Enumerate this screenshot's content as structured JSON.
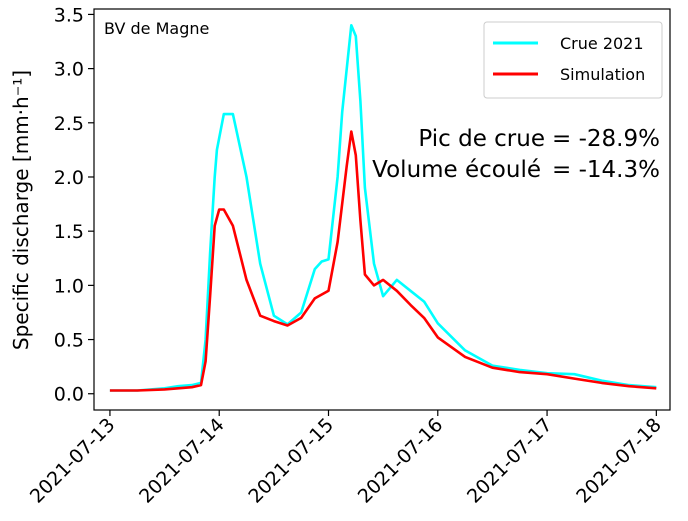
{
  "chart_data": {
    "type": "line",
    "title": "",
    "xlabel": "",
    "ylabel": "Specific discharge [mm·h⁻¹]",
    "ylim": [
      -0.15,
      3.55
    ],
    "xlim": [
      "2021-07-12T20:30",
      "2021-07-18T03:00"
    ],
    "x_ticks": [
      "2021-07-13",
      "2021-07-14",
      "2021-07-15",
      "2021-07-16",
      "2021-07-17",
      "2021-07-18"
    ],
    "y_ticks": [
      "0.0",
      "0.5",
      "1.0",
      "1.5",
      "2.0",
      "2.5",
      "3.0",
      "3.5"
    ],
    "grid": false,
    "legend_position": "top-right",
    "inset_label": "BV de Magne",
    "annotations": [
      {
        "label": "Pic de crue",
        "value": "= -28.9%"
      },
      {
        "label": "Volume écoulé",
        "value": "= -14.3%"
      }
    ],
    "series": [
      {
        "name": "Crue 2021",
        "color": "#00ffff",
        "x": [
          "2021-07-13T00:00",
          "2021-07-13T06:00",
          "2021-07-13T12:00",
          "2021-07-13T15:00",
          "2021-07-13T18:00",
          "2021-07-13T20:00",
          "2021-07-13T21:00",
          "2021-07-13T22:00",
          "2021-07-13T23:00",
          "2021-07-13T23:30",
          "2021-07-14T01:00",
          "2021-07-14T03:00",
          "2021-07-14T06:00",
          "2021-07-14T09:00",
          "2021-07-14T12:00",
          "2021-07-14T15:00",
          "2021-07-14T18:00",
          "2021-07-14T21:00",
          "2021-07-14T22:30",
          "2021-07-15T00:00",
          "2021-07-15T02:00",
          "2021-07-15T03:00",
          "2021-07-15T05:00",
          "2021-07-15T06:00",
          "2021-07-15T07:00",
          "2021-07-15T08:00",
          "2021-07-15T10:00",
          "2021-07-15T12:00",
          "2021-07-15T15:00",
          "2021-07-15T18:00",
          "2021-07-15T21:00",
          "2021-07-16T00:00",
          "2021-07-16T06:00",
          "2021-07-16T12:00",
          "2021-07-16T18:00",
          "2021-07-17T00:00",
          "2021-07-17T06:00",
          "2021-07-17T12:00",
          "2021-07-17T18:00",
          "2021-07-18T00:00"
        ],
        "y": [
          0.03,
          0.03,
          0.05,
          0.07,
          0.08,
          0.1,
          0.5,
          1.3,
          2.0,
          2.25,
          2.58,
          2.58,
          2.0,
          1.2,
          0.72,
          0.64,
          0.75,
          1.15,
          1.22,
          1.24,
          2.0,
          2.6,
          3.4,
          3.3,
          2.7,
          1.9,
          1.2,
          0.9,
          1.05,
          0.95,
          0.85,
          0.65,
          0.4,
          0.26,
          0.22,
          0.19,
          0.18,
          0.12,
          0.08,
          0.06
        ]
      },
      {
        "name": "Simulation",
        "color": "#ff0000",
        "x": [
          "2021-07-13T00:00",
          "2021-07-13T06:00",
          "2021-07-13T12:00",
          "2021-07-13T15:00",
          "2021-07-13T18:00",
          "2021-07-13T20:00",
          "2021-07-13T21:00",
          "2021-07-13T22:00",
          "2021-07-13T23:00",
          "2021-07-14T00:00",
          "2021-07-14T01:00",
          "2021-07-14T03:00",
          "2021-07-14T06:00",
          "2021-07-14T09:00",
          "2021-07-14T12:00",
          "2021-07-14T15:00",
          "2021-07-14T18:00",
          "2021-07-14T21:00",
          "2021-07-15T00:00",
          "2021-07-15T02:00",
          "2021-07-15T04:00",
          "2021-07-15T05:00",
          "2021-07-15T06:00",
          "2021-07-15T07:00",
          "2021-07-15T08:00",
          "2021-07-15T10:00",
          "2021-07-15T12:00",
          "2021-07-15T15:00",
          "2021-07-15T18:00",
          "2021-07-15T21:00",
          "2021-07-16T00:00",
          "2021-07-16T06:00",
          "2021-07-16T12:00",
          "2021-07-16T18:00",
          "2021-07-17T00:00",
          "2021-07-17T06:00",
          "2021-07-17T12:00",
          "2021-07-17T18:00",
          "2021-07-18T00:00"
        ],
        "y": [
          0.03,
          0.03,
          0.04,
          0.05,
          0.06,
          0.08,
          0.3,
          0.9,
          1.55,
          1.7,
          1.7,
          1.55,
          1.05,
          0.72,
          0.67,
          0.63,
          0.7,
          0.88,
          0.95,
          1.4,
          2.1,
          2.42,
          2.2,
          1.6,
          1.1,
          1.0,
          1.05,
          0.95,
          0.82,
          0.7,
          0.52,
          0.34,
          0.24,
          0.2,
          0.18,
          0.14,
          0.1,
          0.07,
          0.05
        ]
      }
    ]
  }
}
